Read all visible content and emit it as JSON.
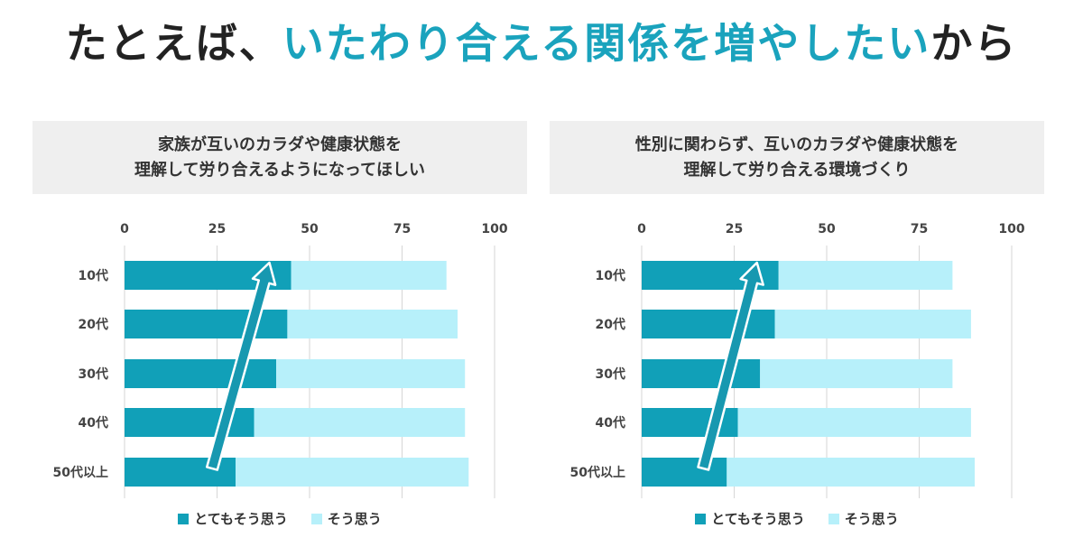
{
  "headline": {
    "prefix": "たとえば、",
    "accent": "いたわり合える関係を増やしたい",
    "suffix": "から"
  },
  "colors": {
    "accent": "#1aa3bd",
    "strong": "#11a0b8",
    "agree": "#b7f0fa",
    "grid": "#d6d6d6",
    "arrow": "#1798b0"
  },
  "legend": {
    "strong_label": "とてもそう思う",
    "agree_label": "そう思う"
  },
  "chart_data": [
    {
      "type": "bar",
      "orientation": "horizontal",
      "stacked": true,
      "title_line1": "家族が互いのカラダや健康状態を",
      "title_line2": "理解して労り合えるようになってほしい",
      "categories": [
        "10代",
        "20代",
        "30代",
        "40代",
        "50代以上"
      ],
      "xlim": [
        0,
        100
      ],
      "xticks": [
        "0",
        "25",
        "50",
        "75",
        "100"
      ],
      "series": [
        {
          "name": "とてもそう思う",
          "values": [
            45,
            44,
            41,
            35,
            30
          ]
        },
        {
          "name": "そう思う",
          "values": [
            42,
            46,
            51,
            57,
            63
          ]
        }
      ],
      "annotation": "upward-arrow"
    },
    {
      "type": "bar",
      "orientation": "horizontal",
      "stacked": true,
      "title_line1": "性別に関わらず、互いのカラダや健康状態を",
      "title_line2": "理解して労り合える環境づくり",
      "categories": [
        "10代",
        "20代",
        "30代",
        "40代",
        "50代以上"
      ],
      "xlim": [
        0,
        100
      ],
      "xticks": [
        "0",
        "25",
        "50",
        "75",
        "100"
      ],
      "series": [
        {
          "name": "とてもそう思う",
          "values": [
            37,
            36,
            32,
            26,
            23
          ]
        },
        {
          "name": "そう思う",
          "values": [
            47,
            53,
            52,
            63,
            67
          ]
        }
      ],
      "annotation": "upward-arrow"
    }
  ]
}
